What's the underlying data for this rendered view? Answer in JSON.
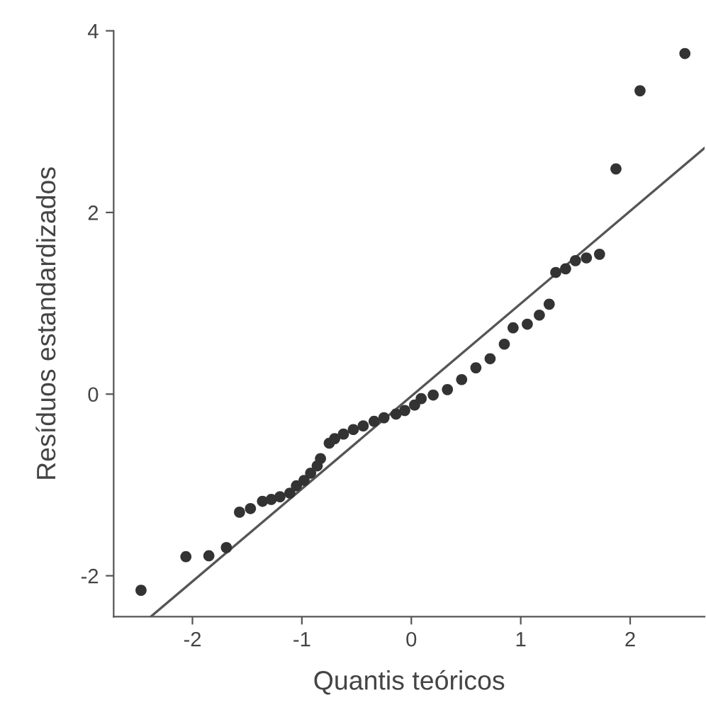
{
  "chart_data": {
    "type": "scatter",
    "xlabel": "Quantis teóricos",
    "ylabel": "Resíduos estandardizados",
    "xlim": [
      -2.72,
      2.68
    ],
    "ylim": [
      -2.45,
      4
    ],
    "xticks": [
      -2,
      -1,
      0,
      1,
      2
    ],
    "yticks": [
      -2,
      0,
      2,
      4
    ],
    "grid": false,
    "marker": "circle",
    "series": [
      {
        "color": "#333333",
        "x": [
          -2.47,
          -2.06,
          -1.85,
          -1.69,
          -1.57,
          -1.47,
          -1.36,
          -1.28,
          -1.2,
          -1.11,
          -1.05,
          -0.98,
          -0.92,
          -0.86,
          -0.83,
          -0.75,
          -0.7,
          -0.62,
          -0.53,
          -0.44,
          -0.34,
          -0.25,
          -0.14,
          -0.06,
          0.03,
          0.09,
          0.2,
          0.33,
          0.46,
          0.59,
          0.72,
          0.85,
          0.93,
          1.06,
          1.17,
          1.26,
          1.32,
          1.41,
          1.5,
          1.6,
          1.72,
          1.87,
          2.09,
          2.5
        ],
        "values": [
          -2.16,
          -1.79,
          -1.78,
          -1.69,
          -1.3,
          -1.26,
          -1.18,
          -1.16,
          -1.13,
          -1.09,
          -1.01,
          -0.95,
          -0.87,
          -0.79,
          -0.71,
          -0.54,
          -0.49,
          -0.44,
          -0.39,
          -0.35,
          -0.3,
          -0.26,
          -0.22,
          -0.18,
          -0.12,
          -0.05,
          -0.01,
          0.05,
          0.16,
          0.29,
          0.39,
          0.55,
          0.73,
          0.77,
          0.87,
          0.99,
          1.34,
          1.38,
          1.47,
          1.5,
          1.54,
          2.48,
          3.34,
          3.75
        ]
      },
      {
        "type": "line",
        "color": "#555555",
        "marker": "none",
        "x": [
          -2.38,
          2.68
        ],
        "values": [
          -2.45,
          2.71
        ]
      }
    ]
  }
}
